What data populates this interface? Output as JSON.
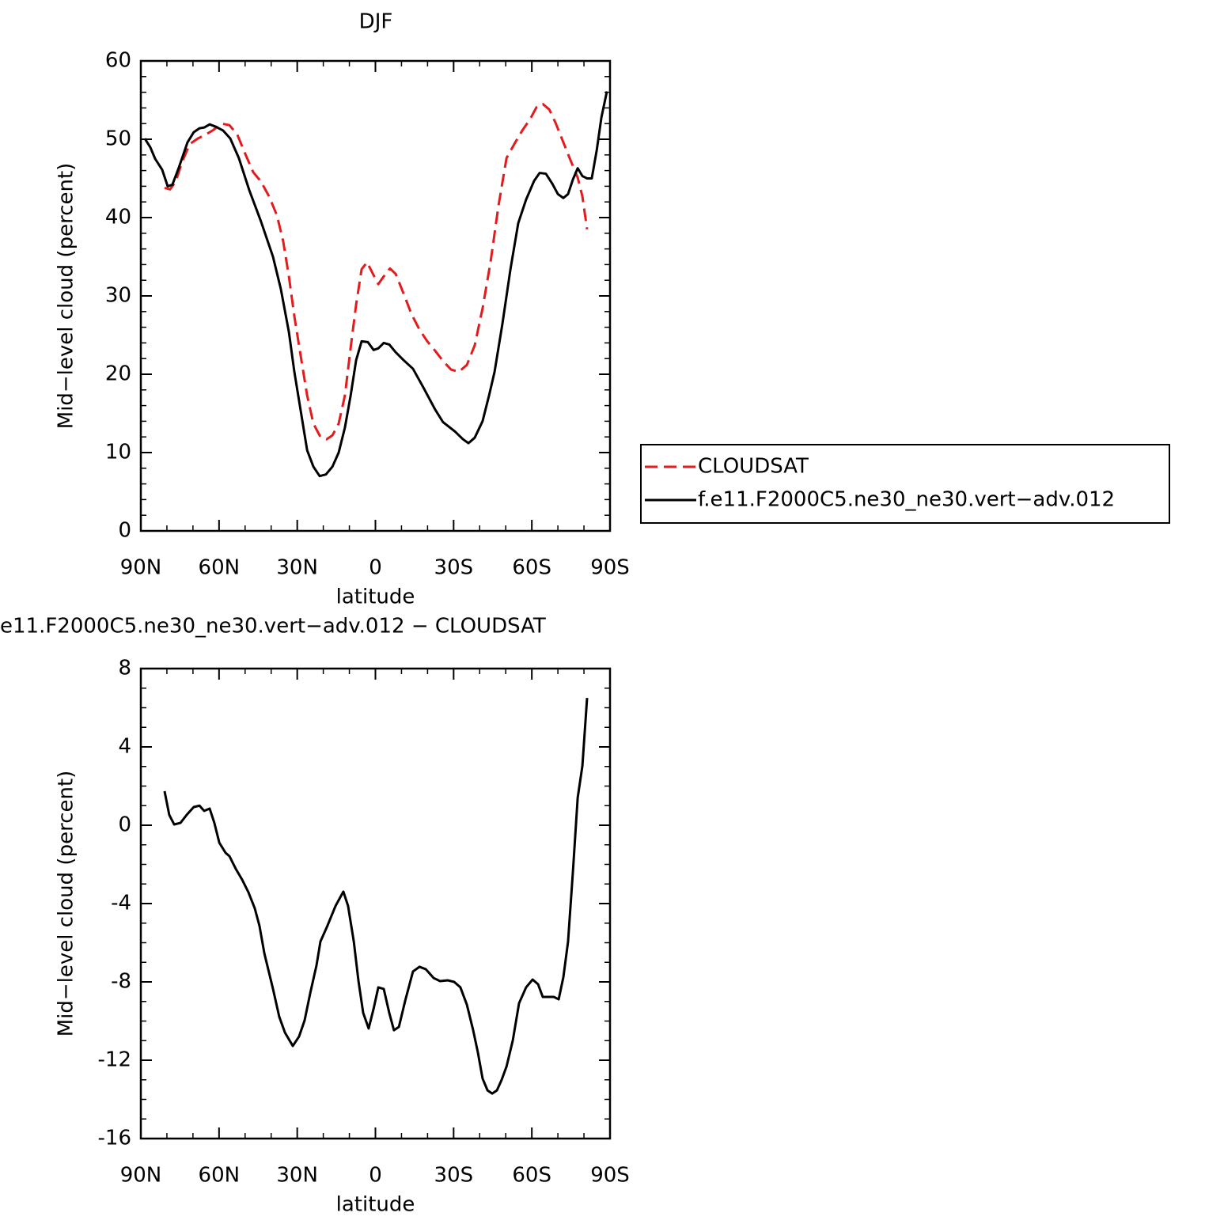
{
  "chart_data": [
    {
      "type": "line",
      "title": "DJF",
      "xlabel": "latitude",
      "ylabel": "Mid−level cloud (percent)",
      "xlim": [
        90,
        -90
      ],
      "ylim": [
        0,
        60
      ],
      "xticks": [
        {
          "value": 90,
          "label": "90N"
        },
        {
          "value": 60,
          "label": "60N"
        },
        {
          "value": 30,
          "label": "30N"
        },
        0,
        {
          "value": -30,
          "label": "30S"
        },
        {
          "value": -60,
          "label": "60S"
        },
        {
          "value": -90,
          "label": "90S"
        }
      ],
      "yticks": [
        0,
        10,
        20,
        30,
        40,
        50,
        60
      ],
      "legend": "right",
      "series": [
        {
          "name": "CLOUDSAT",
          "color": "#e41a1c",
          "dash": true,
          "x": [
            80.9,
            78.8,
            76.6,
            74.2,
            71.2,
            68.1,
            65.1,
            62.1,
            59.0,
            56.0,
            53.0,
            49.9,
            46.9,
            43.9,
            40.8,
            37.8,
            35.4,
            33.2,
            31.1,
            28.7,
            26.2,
            23.8,
            21.1,
            18.7,
            16.5,
            14.1,
            11.7,
            9.5,
            7.4,
            5.3,
            3.2,
            1.4,
            -1.1,
            -3.2,
            -5.6,
            -7.8,
            -10.8,
            -13.8,
            -16.9,
            -19.9,
            -22.9,
            -25.9,
            -29.0,
            -32.0,
            -35.1,
            -38.1,
            -41.1,
            -44.2,
            -47.2,
            -50.3,
            -53.3,
            -56.3,
            -59.4,
            -61.8,
            -64.2,
            -66.7,
            -69.1,
            -71.5,
            -74.5,
            -77.6,
            -79.4,
            -81.2
          ],
          "values": [
            43.8,
            43.6,
            44.6,
            47.1,
            49.4,
            50.1,
            50.6,
            51.2,
            52.0,
            51.8,
            50.6,
            48.1,
            45.8,
            44.6,
            42.7,
            40.3,
            37.0,
            32.5,
            27.4,
            22.4,
            17.3,
            13.7,
            12.0,
            11.7,
            12.2,
            13.7,
            17.3,
            23.4,
            28.9,
            33.4,
            34.3,
            33.1,
            31.5,
            32.5,
            33.5,
            32.8,
            30.3,
            27.7,
            25.7,
            24.2,
            23.0,
            21.7,
            20.6,
            20.3,
            21.2,
            23.7,
            28.4,
            34.4,
            41.5,
            47.6,
            49.4,
            51.1,
            52.6,
            54.1,
            54.5,
            53.8,
            52.1,
            50.1,
            47.6,
            45.1,
            42.7,
            38.5
          ]
        },
        {
          "name": "f.e11.F2000C5.ne30_ne30.vert−adv.012",
          "color": "#000000",
          "dash": false,
          "x": [
            88.5,
            86.4,
            84.5,
            81.8,
            79.7,
            77.9,
            75.4,
            72.1,
            69.7,
            67.5,
            65.7,
            63.6,
            61.2,
            58.4,
            55.7,
            52.4,
            48.4,
            43.9,
            39.3,
            36.3,
            33.2,
            31.1,
            28.7,
            26.2,
            23.8,
            21.4,
            19.0,
            16.5,
            14.1,
            11.7,
            9.5,
            7.4,
            5.3,
            2.9,
            0.7,
            -1.1,
            -3.2,
            -5.3,
            -7.8,
            -10.8,
            -14.4,
            -18.4,
            -22.9,
            -25.9,
            -30.5,
            -33.6,
            -35.7,
            -38.1,
            -41.1,
            -43.6,
            -45.7,
            -48.7,
            -51.8,
            -54.8,
            -57.8,
            -60.9,
            -63.0,
            -65.4,
            -67.9,
            -70.0,
            -72.1,
            -73.9,
            -75.8,
            -77.6,
            -79.4,
            -81.2,
            -83.0,
            -84.9,
            -86.7,
            -88.8
          ],
          "values": [
            50.1,
            49.0,
            47.5,
            46.1,
            44.0,
            44.2,
            46.4,
            49.6,
            50.9,
            51.4,
            51.5,
            51.9,
            51.6,
            51.1,
            50.1,
            47.6,
            43.5,
            39.5,
            35.0,
            30.9,
            25.4,
            20.3,
            15.4,
            10.3,
            8.2,
            7.0,
            7.2,
            8.2,
            10.0,
            13.2,
            17.3,
            21.8,
            24.2,
            24.1,
            23.1,
            23.3,
            24.0,
            23.8,
            22.8,
            21.8,
            20.7,
            18.3,
            15.5,
            13.9,
            12.7,
            11.7,
            11.2,
            11.9,
            14.0,
            17.3,
            20.3,
            26.4,
            33.4,
            39.3,
            42.3,
            44.7,
            45.7,
            45.6,
            44.3,
            43.0,
            42.5,
            43.0,
            44.9,
            46.3,
            45.3,
            45.0,
            45.0,
            48.6,
            52.8,
            56.1
          ]
        }
      ]
    },
    {
      "type": "line",
      "title": "e11.F2000C5.ne30_ne30.vert−adv.012 − CLOUDSAT",
      "xlabel": "latitude",
      "ylabel": "Mid−level cloud (percent)",
      "xlim": [
        90,
        -90
      ],
      "ylim": [
        -16,
        8
      ],
      "xticks": [
        {
          "value": 90,
          "label": "90N"
        },
        {
          "value": 60,
          "label": "60N"
        },
        {
          "value": 30,
          "label": "30N"
        },
        0,
        {
          "value": -30,
          "label": "30S"
        },
        {
          "value": -60,
          "label": "60S"
        },
        {
          "value": -90,
          "label": "90S"
        }
      ],
      "yticks": [
        -16,
        -12,
        -8,
        -4,
        0,
        4,
        8
      ],
      "series": [
        {
          "color": "#000000",
          "dash": false,
          "x": [
            80.9,
            79.1,
            77.2,
            74.8,
            72.4,
            69.7,
            67.5,
            65.7,
            63.6,
            61.8,
            59.9,
            57.5,
            56.0,
            53.6,
            51.1,
            48.7,
            46.3,
            44.5,
            42.6,
            39.3,
            36.9,
            34.7,
            31.7,
            29.3,
            27.2,
            25.0,
            22.6,
            21.1,
            18.4,
            15.3,
            12.3,
            10.5,
            8.3,
            6.5,
            4.7,
            2.6,
            0.7,
            -1.1,
            -3.2,
            -5.3,
            -7.1,
            -9.0,
            -11.4,
            -14.4,
            -16.9,
            -19.3,
            -22.3,
            -24.8,
            -27.8,
            -30.2,
            -32.6,
            -35.1,
            -37.5,
            -39.3,
            -41.1,
            -43.0,
            -44.8,
            -46.6,
            -48.4,
            -50.3,
            -52.7,
            -55.1,
            -57.8,
            -60.3,
            -62.4,
            -64.2,
            -66.7,
            -68.5,
            -70.3,
            -72.1,
            -73.9,
            -75.8,
            -77.6,
            -79.4,
            -81.2
          ],
          "values": [
            1.74,
            0.53,
            0.04,
            0.12,
            0.53,
            0.93,
            1.0,
            0.73,
            0.85,
            0.12,
            -0.89,
            -1.41,
            -1.58,
            -2.22,
            -2.79,
            -3.43,
            -4.24,
            -5.13,
            -6.55,
            -8.36,
            -9.78,
            -10.59,
            -11.27,
            -10.79,
            -9.98,
            -8.57,
            -7.15,
            -5.94,
            -5.13,
            -4.12,
            -3.39,
            -4.12,
            -5.94,
            -7.96,
            -9.58,
            -10.38,
            -9.37,
            -8.28,
            -8.36,
            -9.58,
            -10.47,
            -10.3,
            -8.97,
            -7.47,
            -7.23,
            -7.35,
            -7.8,
            -7.96,
            -7.92,
            -8.0,
            -8.28,
            -9.17,
            -10.47,
            -11.6,
            -12.93,
            -13.54,
            -13.7,
            -13.54,
            -13.01,
            -12.32,
            -10.99,
            -9.09,
            -8.28,
            -7.88,
            -8.12,
            -8.77,
            -8.77,
            -8.77,
            -8.89,
            -7.76,
            -5.94,
            -2.3,
            1.41,
            3.03,
            6.5
          ]
        }
      ]
    }
  ]
}
